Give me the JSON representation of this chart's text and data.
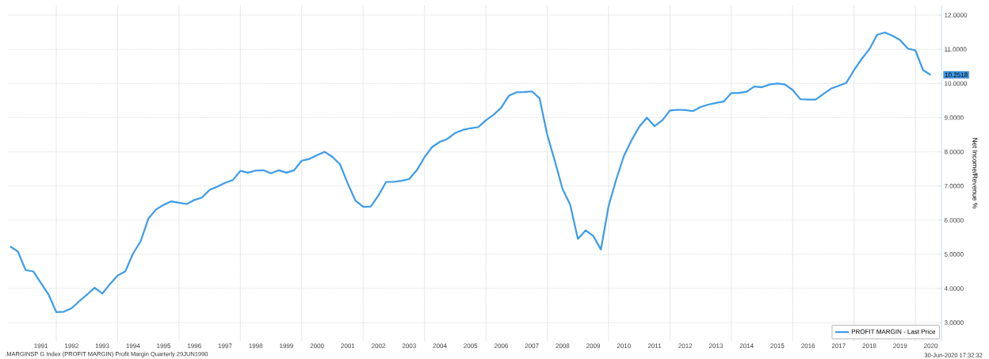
{
  "chart_data": {
    "type": "line",
    "ylabel": "Net Income/Revenue %",
    "x": [
      1990.5,
      1990.75,
      1991,
      1991.25,
      1991.5,
      1991.75,
      1992,
      1992.25,
      1992.5,
      1992.75,
      1993,
      1993.25,
      1993.5,
      1993.75,
      1994,
      1994.25,
      1994.5,
      1994.75,
      1995,
      1995.25,
      1995.5,
      1995.75,
      1996,
      1996.25,
      1996.5,
      1996.75,
      1997,
      1997.25,
      1997.5,
      1997.75,
      1998,
      1998.25,
      1998.5,
      1998.75,
      1999,
      1999.25,
      1999.5,
      1999.75,
      2000,
      2000.25,
      2000.5,
      2000.75,
      2001,
      2001.25,
      2001.5,
      2001.75,
      2002,
      2002.25,
      2002.5,
      2002.75,
      2003,
      2003.25,
      2003.5,
      2003.75,
      2004,
      2004.25,
      2004.5,
      2004.75,
      2005,
      2005.25,
      2005.5,
      2005.75,
      2006,
      2006.25,
      2006.5,
      2006.75,
      2007,
      2007.25,
      2007.5,
      2007.75,
      2008,
      2008.25,
      2008.5,
      2008.75,
      2009,
      2009.25,
      2009.5,
      2009.75,
      2010,
      2010.25,
      2010.5,
      2010.75,
      2011,
      2011.25,
      2011.5,
      2011.75,
      2012,
      2012.25,
      2012.5,
      2012.75,
      2013,
      2013.25,
      2013.5,
      2013.75,
      2014,
      2014.25,
      2014.5,
      2014.75,
      2015,
      2015.25,
      2015.5,
      2015.75,
      2016,
      2016.25,
      2016.5,
      2016.75,
      2017,
      2017.25,
      2017.5,
      2017.75,
      2018,
      2018.25,
      2018.5,
      2018.75,
      2019,
      2019.25,
      2019.5,
      2019.75,
      2020,
      2020.25,
      2020.5
    ],
    "series": [
      {
        "name": "PROFIT MARGIN - Last Price",
        "color": "#3d9be9",
        "values": [
          5.23,
          5.08,
          4.54,
          4.5,
          4.16,
          3.82,
          3.31,
          3.32,
          3.42,
          3.63,
          3.82,
          4.02,
          3.85,
          4.13,
          4.38,
          4.5,
          5.02,
          5.38,
          6.04,
          6.31,
          6.45,
          6.55,
          6.51,
          6.47,
          6.59,
          6.66,
          6.89,
          6.98,
          7.09,
          7.17,
          7.44,
          7.39,
          7.45,
          7.46,
          7.37,
          7.46,
          7.39,
          7.46,
          7.74,
          7.79,
          7.9,
          8.0,
          7.85,
          7.63,
          7.07,
          6.57,
          6.39,
          6.4,
          6.72,
          7.12,
          7.12,
          7.15,
          7.2,
          7.46,
          7.84,
          8.14,
          8.29,
          8.38,
          8.55,
          8.64,
          8.69,
          8.72,
          8.92,
          9.08,
          9.29,
          9.64,
          9.74,
          9.75,
          9.77,
          9.57,
          8.5,
          7.73,
          6.91,
          6.45,
          5.45,
          5.7,
          5.54,
          5.14,
          6.41,
          7.19,
          7.88,
          8.34,
          8.73,
          9.0,
          8.75,
          8.92,
          9.21,
          9.23,
          9.22,
          9.19,
          9.31,
          9.38,
          9.43,
          9.47,
          9.72,
          9.72,
          9.76,
          9.91,
          9.89,
          9.97,
          10.0,
          9.97,
          9.81,
          9.54,
          9.53,
          9.53,
          9.69,
          9.85,
          9.93,
          10.02,
          10.39,
          10.72,
          11.0,
          11.42,
          11.49,
          11.4,
          11.27,
          11.02,
          10.97,
          10.39,
          10.2518
        ]
      }
    ],
    "xlim": [
      1990.45,
      2020.85
    ],
    "xticks": [
      {
        "value": 1991.5,
        "label": "1991"
      },
      {
        "value": 1992.5,
        "label": "1992"
      },
      {
        "value": 1993.5,
        "label": "1993"
      },
      {
        "value": 1994.5,
        "label": "1994"
      },
      {
        "value": 1995.5,
        "label": "1995"
      },
      {
        "value": 1996.5,
        "label": "1996"
      },
      {
        "value": 1997.5,
        "label": "1997"
      },
      {
        "value": 1998.5,
        "label": "1998"
      },
      {
        "value": 1999.5,
        "label": "1999"
      },
      {
        "value": 2000.5,
        "label": "2000"
      },
      {
        "value": 2001.5,
        "label": "2001"
      },
      {
        "value": 2002.5,
        "label": "2002"
      },
      {
        "value": 2003.5,
        "label": "2003"
      },
      {
        "value": 2004.5,
        "label": "2004"
      },
      {
        "value": 2005.5,
        "label": "2005"
      },
      {
        "value": 2006.5,
        "label": "2006"
      },
      {
        "value": 2007.5,
        "label": "2007"
      },
      {
        "value": 2008.5,
        "label": "2008"
      },
      {
        "value": 2009.5,
        "label": "2009"
      },
      {
        "value": 2010.5,
        "label": "2010"
      },
      {
        "value": 2011.5,
        "label": "2011"
      },
      {
        "value": 2012.5,
        "label": "2012"
      },
      {
        "value": 2013.5,
        "label": "2013"
      },
      {
        "value": 2014.5,
        "label": "2014"
      },
      {
        "value": 2015.5,
        "label": "2015"
      },
      {
        "value": 2016.5,
        "label": "2016"
      },
      {
        "value": 2017.5,
        "label": "2017"
      },
      {
        "value": 2018.5,
        "label": "2018"
      },
      {
        "value": 2019.5,
        "label": "2019"
      },
      {
        "value": 2020.5,
        "label": "2020"
      },
      {
        "value": 1992,
        "label": null
      },
      {
        "value": 1994,
        "label": null
      },
      {
        "value": 1996,
        "label": null
      },
      {
        "value": 1998,
        "label": null
      },
      {
        "value": 2000,
        "label": null
      },
      {
        "value": 2002,
        "label": null
      },
      {
        "value": 2004,
        "label": null
      },
      {
        "value": 2006,
        "label": null
      },
      {
        "value": 2008,
        "label": null
      },
      {
        "value": 2010,
        "label": null
      },
      {
        "value": 2012,
        "label": null
      },
      {
        "value": 2014,
        "label": null
      },
      {
        "value": 2016,
        "label": null
      },
      {
        "value": 2018,
        "label": null
      },
      {
        "value": 2020,
        "label": null
      }
    ],
    "ylim": [
      2.47,
      12.28
    ],
    "yticks": [
      {
        "value": 3,
        "label": "3.0000"
      },
      {
        "value": 4,
        "label": "4.0000"
      },
      {
        "value": 5,
        "label": "5.0000"
      },
      {
        "value": 6,
        "label": "6.0000"
      },
      {
        "value": 7,
        "label": "7.0000"
      },
      {
        "value": 8,
        "label": "8.0000"
      },
      {
        "value": 9,
        "label": "9.0000"
      },
      {
        "value": 10,
        "label": "10.0000"
      },
      {
        "value": 11,
        "label": "11.0000"
      },
      {
        "value": 12,
        "label": "12.0000"
      }
    ],
    "grid": true,
    "legend": "bottom right",
    "marker": "none",
    "line_style": "solid",
    "annotations": [
      {
        "text": "10.2518",
        "x": 2020.5,
        "y": 10.2518
      },
      ".MARGINSP G Index (PROFIT MARGIN) Profit Margin  Quarterly 29JUN1990",
      "30-Jun-2020 17:32:32"
    ]
  }
}
